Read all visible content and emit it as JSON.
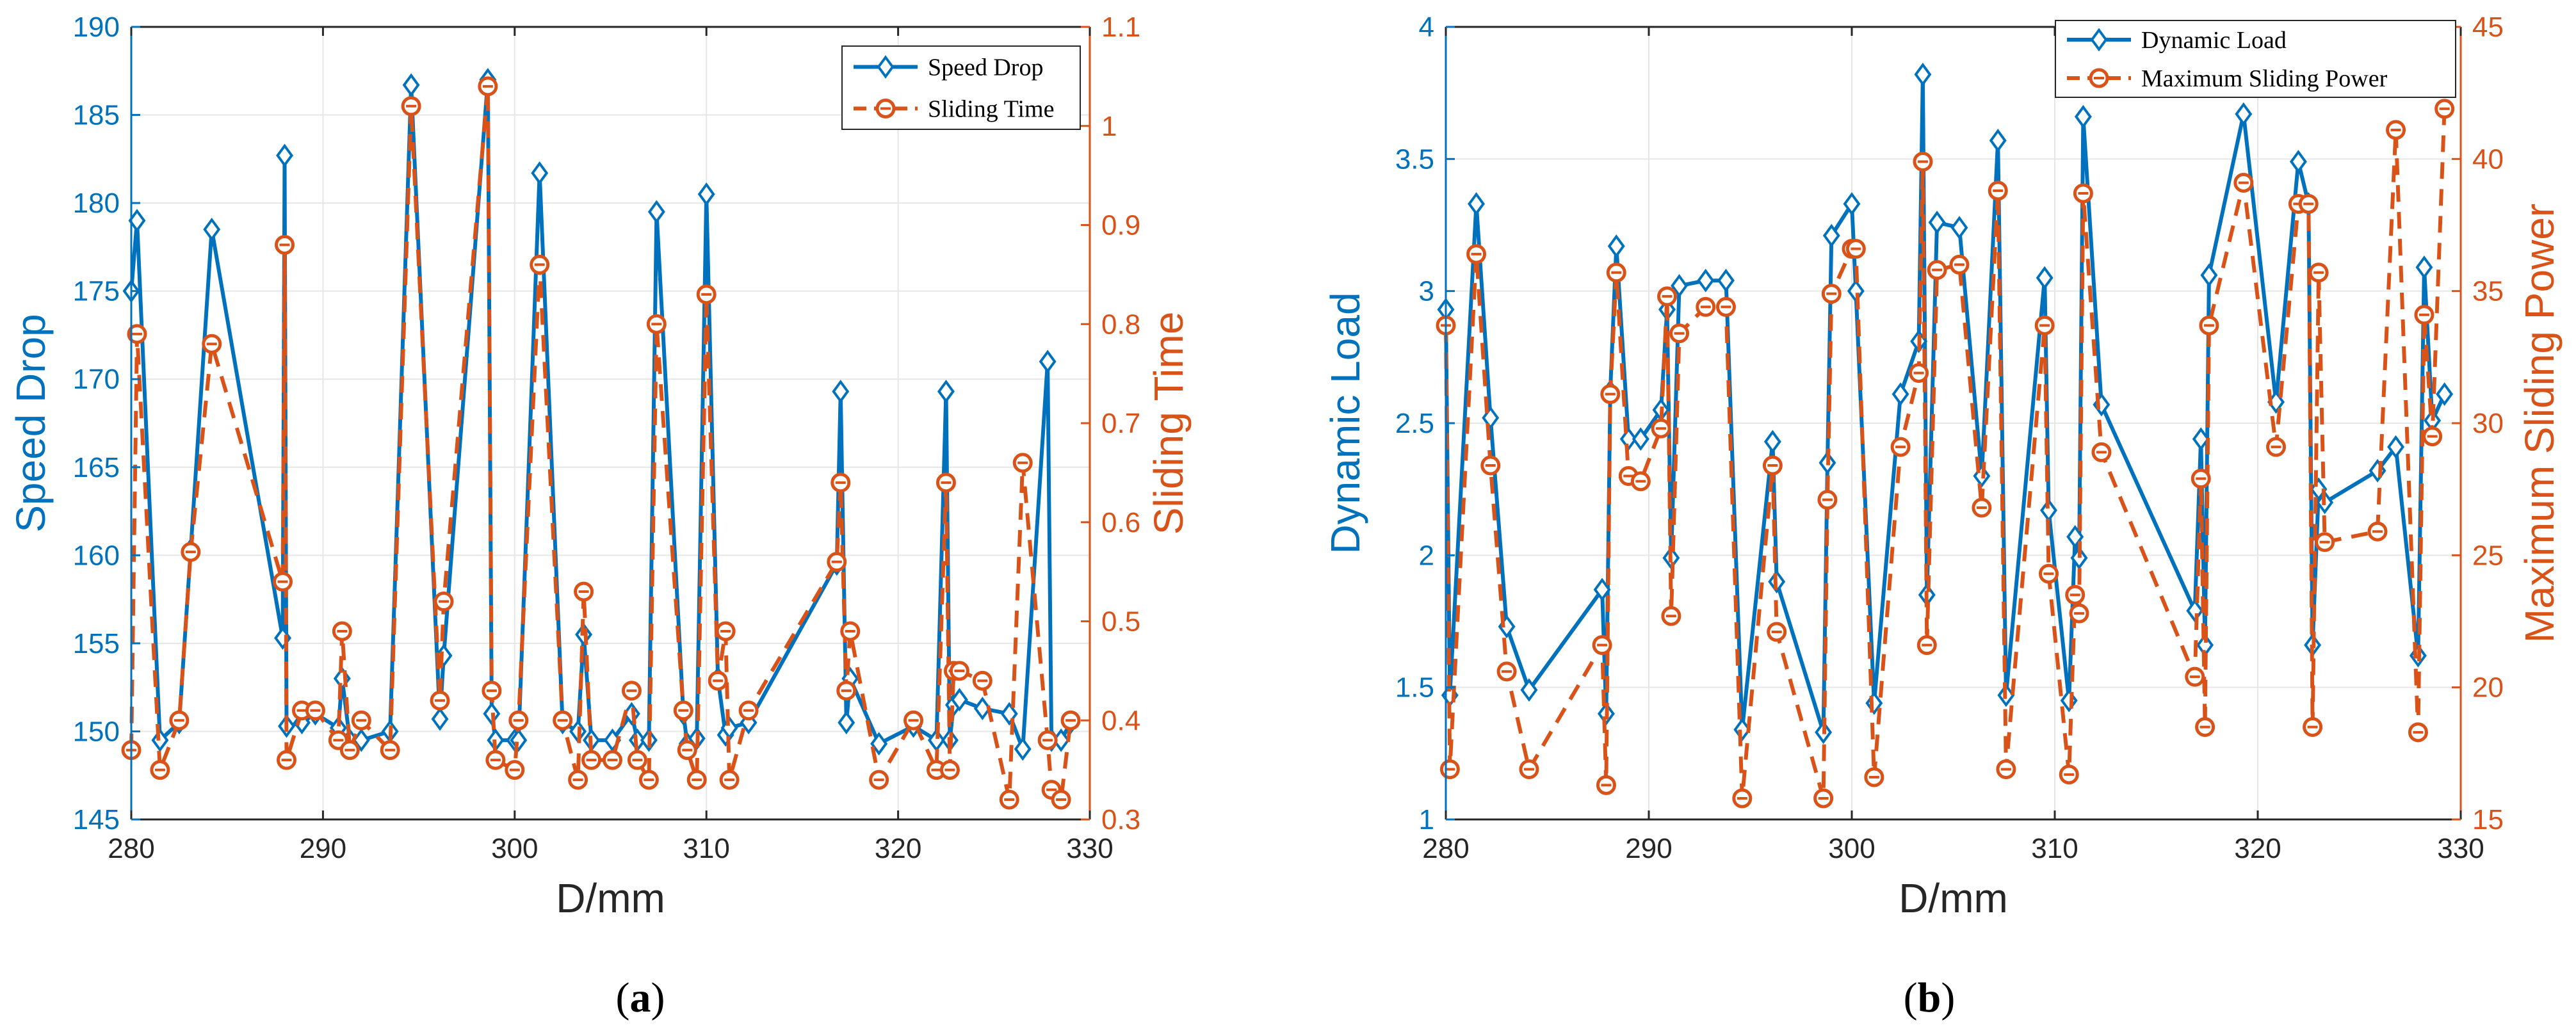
{
  "colors": {
    "left": "#0072BD",
    "right": "#D95319",
    "grid": "#e6e6e6",
    "axis": "#262626"
  },
  "captions": [
    {
      "open": "(",
      "letter": "a",
      "close": ")"
    },
    {
      "open": "(",
      "letter": "b",
      "close": ")"
    }
  ],
  "chart_data": [
    {
      "type": "line",
      "xlabel": "D/mm",
      "ylabel_left": "Speed Drop",
      "ylabel_right": "Sliding Time",
      "xlim": [
        280,
        330
      ],
      "ylim_left": [
        145,
        190
      ],
      "ylim_right": [
        0.3,
        1.1
      ],
      "xticks": [
        "280",
        "290",
        "300",
        "310",
        "320",
        "330"
      ],
      "yticks_left": [
        "145",
        "150",
        "155",
        "160",
        "165",
        "170",
        "175",
        "180",
        "185",
        "190"
      ],
      "yticks_right": [
        "0.3",
        "0.4",
        "0.5",
        "0.6",
        "0.7",
        "0.8",
        "0.9",
        "1",
        "1.1"
      ],
      "grid": true,
      "legend_position": "top-right",
      "series": [
        {
          "name": "Speed Drop",
          "axis": "left",
          "style": "solid-diamond",
          "x": [
            280,
            280.3,
            281.5,
            282.5,
            283.1,
            284.2,
            287.9,
            288.0,
            288.1,
            288.9,
            289.6,
            290.8,
            291.0,
            291.4,
            292.0,
            293.5,
            294.6,
            296.1,
            296.3,
            298.6,
            298.8,
            299.0,
            300.0,
            300.2,
            301.3,
            302.5,
            303.3,
            303.6,
            304.0,
            305.1,
            306.1,
            306.4,
            307.0,
            307.4,
            308.8,
            309.0,
            309.5,
            310.0,
            310.6,
            311.0,
            311.2,
            312.2,
            316.8,
            317.0,
            317.3,
            317.5,
            319.0,
            320.8,
            322.0,
            322.5,
            322.7,
            322.9,
            323.2,
            324.4,
            325.8,
            326.5,
            327.8,
            328.0,
            328.5,
            329.0
          ],
          "y": [
            175.0,
            179.0,
            149.5,
            150.5,
            160.3,
            178.5,
            155.3,
            182.7,
            150.3,
            150.5,
            151.0,
            150.2,
            153.0,
            149.5,
            149.5,
            150.0,
            186.7,
            150.7,
            154.3,
            187.0,
            151.0,
            149.5,
            149.5,
            149.5,
            181.7,
            150.5,
            150.0,
            155.5,
            149.5,
            149.5,
            151.0,
            149.5,
            149.5,
            179.5,
            151.0,
            149.3,
            149.6,
            180.5,
            153.0,
            149.8,
            150.2,
            150.5,
            159.5,
            169.3,
            150.5,
            153.0,
            149.3,
            150.3,
            149.5,
            169.3,
            149.5,
            151.5,
            151.8,
            151.3,
            151.0,
            149.0,
            171.0,
            149.5,
            149.5,
            150.5
          ]
        },
        {
          "name": "Sliding Time",
          "axis": "right",
          "style": "dashed-circle",
          "x": [
            280,
            280.3,
            281.5,
            282.5,
            283.1,
            284.2,
            287.9,
            288.0,
            288.1,
            288.9,
            289.6,
            290.8,
            291.0,
            291.4,
            292.0,
            293.5,
            294.6,
            296.1,
            296.3,
            298.6,
            298.8,
            299.0,
            300.0,
            300.2,
            301.3,
            302.5,
            303.3,
            303.6,
            304.0,
            305.1,
            306.1,
            306.4,
            307.0,
            307.4,
            308.8,
            309.0,
            309.5,
            310.0,
            310.6,
            311.0,
            311.2,
            312.2,
            316.8,
            317.0,
            317.3,
            317.5,
            319.0,
            320.8,
            322.0,
            322.5,
            322.7,
            322.9,
            323.2,
            324.4,
            325.8,
            326.5,
            327.8,
            328.0,
            328.5,
            329.0
          ],
          "y": [
            0.37,
            0.79,
            0.35,
            0.4,
            0.57,
            0.78,
            0.54,
            0.88,
            0.36,
            0.41,
            0.41,
            0.38,
            0.49,
            0.37,
            0.4,
            0.37,
            1.02,
            0.42,
            0.52,
            1.04,
            0.43,
            0.36,
            0.35,
            0.4,
            0.86,
            0.4,
            0.34,
            0.53,
            0.36,
            0.36,
            0.43,
            0.36,
            0.34,
            0.8,
            0.41,
            0.37,
            0.34,
            0.83,
            0.44,
            0.49,
            0.34,
            0.41,
            0.56,
            0.64,
            0.43,
            0.49,
            0.34,
            0.4,
            0.35,
            0.64,
            0.35,
            0.45,
            0.45,
            0.44,
            0.32,
            0.66,
            0.38,
            0.33,
            0.32,
            0.4
          ]
        }
      ]
    },
    {
      "type": "line",
      "xlabel": "D/mm",
      "ylabel_left": "Dynamic Load",
      "ylabel_right": "Maximum Sliding Power",
      "xlim": [
        280,
        330
      ],
      "ylim_left": [
        1,
        4
      ],
      "ylim_right": [
        15,
        45
      ],
      "xticks": [
        "280",
        "290",
        "300",
        "310",
        "320",
        "330"
      ],
      "yticks_left": [
        "1",
        "1.5",
        "2",
        "2.5",
        "3",
        "3.5",
        "4"
      ],
      "yticks_right": [
        "15",
        "20",
        "25",
        "30",
        "35",
        "40",
        "45"
      ],
      "grid": true,
      "legend_position": "top-right",
      "series": [
        {
          "name": "Dynamic Load",
          "axis": "left",
          "style": "solid-diamond",
          "x": [
            280,
            280.2,
            281.5,
            282.2,
            283.0,
            284.1,
            287.7,
            287.9,
            288.1,
            288.4,
            289.0,
            289.6,
            290.6,
            290.9,
            291.1,
            291.5,
            292.8,
            293.8,
            294.6,
            296.1,
            296.3,
            298.6,
            298.8,
            299.0,
            300.0,
            300.2,
            301.1,
            302.4,
            303.3,
            303.5,
            303.7,
            304.2,
            305.3,
            306.4,
            307.2,
            307.6,
            309.5,
            309.7,
            310.7,
            311.0,
            311.2,
            311.4,
            312.3,
            316.9,
            317.2,
            317.4,
            317.6,
            319.3,
            320.9,
            322.0,
            322.5,
            322.7,
            323.0,
            323.3,
            325.9,
            326.8,
            327.9,
            328.2,
            328.6,
            329.2
          ],
          "y": [
            2.93,
            1.47,
            3.33,
            2.52,
            1.73,
            1.49,
            1.87,
            1.4,
            2.62,
            3.17,
            2.44,
            2.44,
            2.55,
            2.93,
            1.99,
            3.02,
            3.04,
            3.04,
            1.34,
            2.43,
            1.9,
            1.33,
            2.35,
            3.21,
            3.33,
            3.0,
            1.44,
            2.61,
            2.81,
            3.82,
            1.85,
            3.26,
            3.24,
            2.3,
            3.57,
            1.47,
            3.05,
            2.17,
            1.45,
            2.07,
            1.99,
            3.66,
            2.57,
            1.79,
            2.44,
            1.66,
            3.06,
            3.67,
            2.58,
            3.49,
            3.33,
            1.66,
            2.25,
            2.2,
            2.32,
            2.41,
            1.62,
            3.09,
            2.51,
            2.61
          ]
        },
        {
          "name": "Maximum Sliding Power",
          "axis": "right",
          "style": "dashed-circle",
          "x": [
            280,
            280.2,
            281.5,
            282.2,
            283.0,
            284.1,
            287.7,
            287.9,
            288.1,
            288.4,
            289.0,
            289.6,
            290.6,
            290.9,
            291.1,
            291.5,
            292.8,
            293.8,
            294.6,
            296.1,
            296.3,
            298.6,
            298.8,
            299.0,
            300.0,
            300.2,
            301.1,
            302.4,
            303.3,
            303.5,
            303.7,
            304.2,
            305.3,
            306.4,
            307.2,
            307.6,
            309.5,
            309.7,
            310.7,
            311.0,
            311.2,
            311.4,
            312.3,
            316.9,
            317.2,
            317.4,
            317.6,
            319.3,
            320.9,
            322.0,
            322.5,
            322.7,
            323.0,
            323.3,
            325.9,
            326.8,
            327.9,
            328.2,
            328.6,
            329.2
          ],
          "y": [
            33.7,
            16.9,
            36.4,
            28.4,
            20.6,
            16.9,
            21.6,
            16.3,
            31.1,
            35.7,
            28.0,
            27.8,
            29.8,
            34.8,
            22.7,
            33.4,
            34.4,
            34.4,
            15.8,
            28.4,
            22.1,
            15.8,
            27.1,
            34.9,
            36.6,
            36.6,
            16.6,
            29.1,
            31.9,
            39.9,
            21.6,
            35.8,
            36.0,
            26.8,
            38.8,
            16.9,
            33.7,
            24.3,
            16.7,
            23.5,
            22.8,
            38.7,
            28.9,
            20.4,
            27.9,
            18.5,
            33.7,
            39.1,
            29.1,
            38.3,
            38.3,
            18.5,
            35.7,
            25.5,
            25.9,
            41.1,
            18.3,
            34.1,
            29.5,
            41.9
          ]
        }
      ]
    }
  ]
}
